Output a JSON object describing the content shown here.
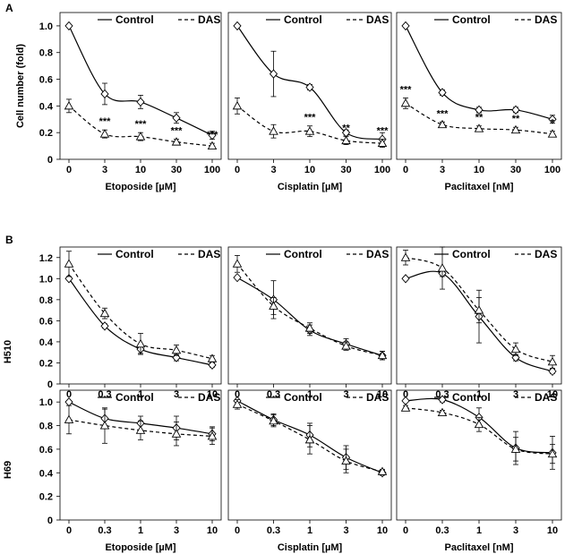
{
  "panel_labels": {
    "a": "A",
    "b": "B"
  },
  "row_labels": {
    "h510": "H510",
    "h69": "H69"
  },
  "chart_data": [
    {
      "id": "A-etoposide",
      "type": "line",
      "section": "A",
      "xlabel": "Etoposide [µM]",
      "ylabel": "Cell number (fold)",
      "categories": [
        "0",
        "3",
        "10",
        "30",
        "100"
      ],
      "ylim": [
        0,
        1.1
      ],
      "yticks": [
        "0",
        "0.2",
        "0.4",
        "0.6",
        "0.8",
        "1.0"
      ],
      "legend": [
        "Control",
        "DAS"
      ],
      "series": [
        {
          "name": "Control",
          "marker": "diamond",
          "style": "solid",
          "values": [
            1.0,
            0.49,
            0.43,
            0.31,
            0.18
          ],
          "errors": [
            0.0,
            0.08,
            0.05,
            0.04,
            0.03
          ]
        },
        {
          "name": "DAS",
          "marker": "triangle",
          "style": "dashed",
          "values": [
            0.4,
            0.19,
            0.17,
            0.13,
            0.1
          ],
          "errors": [
            0.05,
            0.03,
            0.03,
            0.02,
            0.02
          ]
        }
      ],
      "annotations": [
        "***",
        "***",
        "***",
        "***"
      ]
    },
    {
      "id": "A-cisplatin",
      "type": "line",
      "section": "A",
      "xlabel": "Cisplatin [µM]",
      "ylabel": "",
      "categories": [
        "0",
        "3",
        "10",
        "30",
        "100"
      ],
      "ylim": [
        0,
        1.1
      ],
      "legend": [
        "Control",
        "DAS"
      ],
      "series": [
        {
          "name": "Control",
          "marker": "diamond",
          "style": "solid",
          "values": [
            1.0,
            0.64,
            0.54,
            0.2,
            0.15
          ],
          "errors": [
            0.0,
            0.17,
            0.02,
            0.02,
            0.05
          ]
        },
        {
          "name": "DAS",
          "marker": "triangle",
          "style": "dashed",
          "values": [
            0.4,
            0.21,
            0.21,
            0.14,
            0.12
          ],
          "errors": [
            0.06,
            0.05,
            0.04,
            0.03,
            0.03
          ]
        }
      ],
      "annotations": [
        "***",
        "**",
        "***"
      ]
    },
    {
      "id": "A-paclitaxel",
      "type": "line",
      "section": "A",
      "xlabel": "Paclitaxel [nM]",
      "ylabel": "",
      "categories": [
        "0",
        "3",
        "10",
        "30",
        "100"
      ],
      "ylim": [
        0,
        1.1
      ],
      "legend": [
        "Control",
        "DAS"
      ],
      "series": [
        {
          "name": "Control",
          "marker": "diamond",
          "style": "solid",
          "values": [
            1.0,
            0.5,
            0.37,
            0.37,
            0.3
          ],
          "errors": [
            0.0,
            0.02,
            0.02,
            0.02,
            0.03
          ]
        },
        {
          "name": "DAS",
          "marker": "triangle",
          "style": "dashed",
          "values": [
            0.42,
            0.26,
            0.23,
            0.22,
            0.19
          ],
          "errors": [
            0.04,
            0.02,
            0.02,
            0.02,
            0.02
          ]
        }
      ],
      "annotations": [
        "***",
        "***",
        "**",
        "**",
        "*"
      ]
    },
    {
      "id": "B-H510-etoposide",
      "type": "line",
      "section": "B",
      "row": "H510",
      "xlabel": "",
      "ylabel": "H510",
      "categories": [
        "0",
        "0.3",
        "1",
        "3",
        "10"
      ],
      "ylim": [
        0,
        1.3
      ],
      "yticks": [
        "0",
        "0.2",
        "0.4",
        "0.6",
        "0.8",
        "1.0",
        "1.2"
      ],
      "legend": [
        "Control",
        "DAS"
      ],
      "series": [
        {
          "name": "Control",
          "marker": "diamond",
          "style": "solid",
          "values": [
            1.0,
            0.55,
            0.33,
            0.25,
            0.18
          ],
          "errors": [
            0.0,
            0.02,
            0.04,
            0.03,
            0.02
          ]
        },
        {
          "name": "DAS",
          "marker": "triangle",
          "style": "dashed",
          "values": [
            1.14,
            0.67,
            0.38,
            0.32,
            0.24
          ],
          "errors": [
            0.12,
            0.05,
            0.1,
            0.05,
            0.03
          ]
        }
      ]
    },
    {
      "id": "B-H510-cisplatin",
      "type": "line",
      "section": "B",
      "row": "H510",
      "xlabel": "",
      "ylabel": "",
      "categories": [
        "0",
        "0.3",
        "1",
        "3",
        "10"
      ],
      "ylim": [
        0,
        1.3
      ],
      "legend": [
        "Control",
        "DAS"
      ],
      "series": [
        {
          "name": "Control",
          "marker": "diamond",
          "style": "solid",
          "values": [
            1.01,
            0.8,
            0.51,
            0.38,
            0.27
          ],
          "errors": [
            0.0,
            0.18,
            0.05,
            0.05,
            0.04
          ]
        },
        {
          "name": "DAS",
          "marker": "triangle",
          "style": "dashed",
          "values": [
            1.14,
            0.74,
            0.53,
            0.36,
            0.27
          ],
          "errors": [
            0.08,
            0.08,
            0.05,
            0.04,
            0.04
          ]
        }
      ]
    },
    {
      "id": "B-H510-paclitaxel",
      "type": "line",
      "section": "B",
      "row": "H510",
      "xlabel": "",
      "ylabel": "",
      "categories": [
        "0",
        "0.3",
        "1",
        "3",
        "10"
      ],
      "ylim": [
        0,
        1.3
      ],
      "legend": [
        "Control",
        "DAS"
      ],
      "series": [
        {
          "name": "Control",
          "marker": "diamond",
          "style": "solid",
          "values": [
            1.0,
            1.05,
            0.64,
            0.25,
            0.12
          ],
          "errors": [
            0.0,
            0.03,
            0.25,
            0.03,
            0.02
          ]
        },
        {
          "name": "DAS",
          "marker": "triangle",
          "style": "dashed",
          "values": [
            1.2,
            1.1,
            0.7,
            0.33,
            0.21
          ],
          "errors": [
            0.07,
            0.2,
            0.12,
            0.06,
            0.06
          ]
        }
      ]
    },
    {
      "id": "B-H69-etoposide",
      "type": "line",
      "section": "B",
      "row": "H69",
      "xlabel": "Etoposide [µM]",
      "ylabel": "H69",
      "categories": [
        "0",
        "0.3",
        "1",
        "3",
        "10"
      ],
      "ylim": [
        0,
        1.1
      ],
      "yticks": [
        "0",
        "0.2",
        "0.4",
        "0.6",
        "0.8",
        "1.0"
      ],
      "legend": [
        "Control",
        "DAS"
      ],
      "series": [
        {
          "name": "Control",
          "marker": "diamond",
          "style": "solid",
          "values": [
            1.0,
            0.86,
            0.82,
            0.78,
            0.73
          ],
          "errors": [
            0.0,
            0.08,
            0.06,
            0.1,
            0.06
          ]
        },
        {
          "name": "DAS",
          "marker": "triangle",
          "style": "dashed",
          "values": [
            0.85,
            0.8,
            0.76,
            0.73,
            0.71
          ],
          "errors": [
            0.12,
            0.15,
            0.08,
            0.1,
            0.07
          ]
        }
      ]
    },
    {
      "id": "B-H69-cisplatin",
      "type": "line",
      "section": "B",
      "row": "H69",
      "xlabel": "Cisplatin [µM]",
      "ylabel": "",
      "categories": [
        "0",
        "0.3",
        "1",
        "3",
        "10"
      ],
      "ylim": [
        0,
        1.1
      ],
      "legend": [
        "Control",
        "DAS"
      ],
      "series": [
        {
          "name": "Control",
          "marker": "diamond",
          "style": "solid",
          "values": [
            1.01,
            0.85,
            0.72,
            0.53,
            0.4
          ],
          "errors": [
            0.0,
            0.05,
            0.1,
            0.1,
            0.02
          ]
        },
        {
          "name": "DAS",
          "marker": "triangle",
          "style": "dashed",
          "values": [
            0.98,
            0.84,
            0.68,
            0.5,
            0.41
          ],
          "errors": [
            0.04,
            0.05,
            0.12,
            0.1,
            0.02
          ]
        }
      ]
    },
    {
      "id": "B-H69-paclitaxel",
      "type": "line",
      "section": "B",
      "row": "H69",
      "xlabel": "Paclitaxel [nM]",
      "ylabel": "",
      "categories": [
        "0",
        "0.3",
        "1",
        "3",
        "10"
      ],
      "ylim": [
        0,
        1.1
      ],
      "legend": [
        "Control",
        "DAS"
      ],
      "series": [
        {
          "name": "Control",
          "marker": "diamond",
          "style": "solid",
          "values": [
            1.01,
            1.02,
            0.87,
            0.61,
            0.57
          ],
          "errors": [
            0.0,
            0.02,
            0.08,
            0.14,
            0.14
          ]
        },
        {
          "name": "DAS",
          "marker": "triangle",
          "style": "dashed",
          "values": [
            0.95,
            0.91,
            0.81,
            0.6,
            0.56
          ],
          "errors": [
            0.02,
            0.02,
            0.06,
            0.1,
            0.08
          ]
        }
      ]
    }
  ]
}
